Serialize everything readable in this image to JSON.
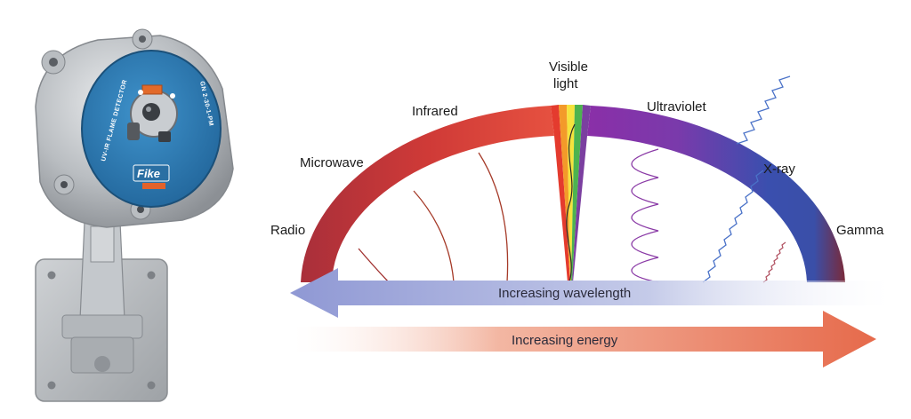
{
  "detector": {
    "brand": "Fike",
    "ring_text_left": "UV-IR FLAME DETECTOR",
    "ring_text_right": "GN 2-30-1-PM",
    "colors": {
      "body": "#b8bcc0",
      "face": "#2f7fb8",
      "brand_plate": "#2a6fa3",
      "brand_tab": "#e2622b"
    }
  },
  "spectrum": {
    "bands": [
      {
        "key": "radio",
        "label": "Radio",
        "color": "#b53a3a"
      },
      {
        "key": "microwave",
        "label": "Microwave",
        "color": "#cc3b38"
      },
      {
        "key": "infrared",
        "label": "Infrared",
        "color": "#df4a3c"
      },
      {
        "key": "visible",
        "label": "Visible\nlight",
        "colors": [
          "#e43b2e",
          "#f39a2a",
          "#f5e33d",
          "#4db34f",
          "#7b3fa0"
        ]
      },
      {
        "key": "ultraviolet",
        "label": "Ultraviolet",
        "color": "#8d35a7"
      },
      {
        "key": "xray",
        "label": "X-ray",
        "color": "#3f52a8"
      },
      {
        "key": "gamma",
        "label": "Gamma",
        "color": "#7a2a3a"
      }
    ]
  },
  "arrows": {
    "wavelength": {
      "label": "Increasing wavelength",
      "color": "#9aa2d6"
    },
    "energy": {
      "label": "Increasing energy",
      "color": "#e8765a"
    }
  }
}
